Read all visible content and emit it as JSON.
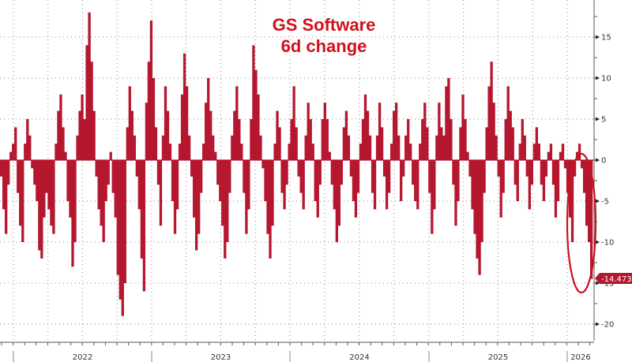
{
  "title": {
    "line1": "GS Software",
    "line2": "6d change"
  },
  "colors": {
    "bar": "#b5172f",
    "title": "#d0101c",
    "annotation_ellipse": "#c8141e",
    "grid": "#8a8a8a",
    "axis": "#555555",
    "badge": "#b5172f"
  },
  "last_value_badge": "-14.4733",
  "chart_data": {
    "type": "bar",
    "title": "GS Software 6d change",
    "xlabel": "",
    "ylabel": "",
    "ylim": [
      -22,
      19
    ],
    "y_ticks": [
      15,
      10,
      5,
      0,
      -5,
      -10,
      -15,
      -20
    ],
    "x_tick_labels": [
      "2022",
      "2023",
      "2024",
      "2025",
      "2026"
    ],
    "grid": true,
    "legend": "none",
    "annotation": "red ellipse around the final drop to -14.4733 (early 2026)",
    "last_value": -14.4733,
    "x_range": [
      "2021-10",
      "2026-02"
    ],
    "values": [
      -2,
      -6,
      -9,
      -3,
      1,
      2,
      4,
      -4,
      -8,
      -10,
      2,
      5,
      3,
      -1,
      -3,
      -5,
      -11,
      -12,
      -7,
      -4,
      -6,
      -8,
      -9,
      2,
      6,
      8,
      4,
      1,
      -5,
      -7,
      -13,
      -10,
      3,
      6,
      8,
      5,
      14,
      18,
      12,
      6,
      -2,
      -6,
      -8,
      -10,
      -5,
      -3,
      1,
      -4,
      -7,
      -14,
      -17,
      -19,
      -15,
      4,
      9,
      6,
      3,
      -2,
      -6,
      -12,
      -16,
      7,
      12,
      17,
      10,
      4,
      -3,
      -8,
      3,
      9,
      6,
      2,
      -5,
      -9,
      -6,
      2,
      8,
      13,
      9,
      3,
      -2,
      -7,
      -11,
      -9,
      -4,
      2,
      7,
      10,
      6,
      3,
      1,
      -3,
      -5,
      -8,
      -12,
      -10,
      -4,
      3,
      6,
      9,
      5,
      2,
      -4,
      -9,
      -6,
      5,
      14,
      11,
      8,
      3,
      -1,
      -5,
      -9,
      -12,
      -8,
      2,
      6,
      4,
      -4,
      -6,
      -3,
      2,
      5,
      9,
      4,
      -2,
      -4,
      -6,
      3,
      7,
      5,
      2,
      -5,
      -7,
      -3,
      5,
      7,
      5,
      1,
      -3,
      -6,
      -10,
      -8,
      -3,
      4,
      6,
      3,
      -2,
      -5,
      -7,
      -4,
      2,
      5,
      8,
      6,
      3,
      -4,
      -6,
      3,
      7,
      4,
      -2,
      -6,
      -4,
      2,
      6,
      7,
      3,
      -5,
      -2,
      3,
      5,
      2,
      -3,
      -5,
      -6,
      2,
      5,
      7,
      4,
      -4,
      -9,
      -6,
      3,
      7,
      4,
      3,
      9,
      10,
      5,
      -3,
      -8,
      -5,
      4,
      8,
      5,
      1,
      -2,
      -6,
      -9,
      -12,
      -14,
      -10,
      -4,
      4,
      9,
      12,
      7,
      3,
      -2,
      -7,
      -4,
      5,
      9,
      6,
      4,
      -3,
      -5,
      2,
      5,
      3,
      -2,
      -6,
      -3,
      2,
      4,
      2,
      -3,
      -5,
      -2,
      1,
      2,
      -3,
      -7,
      -5,
      1,
      2,
      -1,
      -4,
      -7,
      -10,
      -2,
      1,
      2,
      -1,
      -4,
      -8,
      -10,
      -14.4733
    ]
  }
}
